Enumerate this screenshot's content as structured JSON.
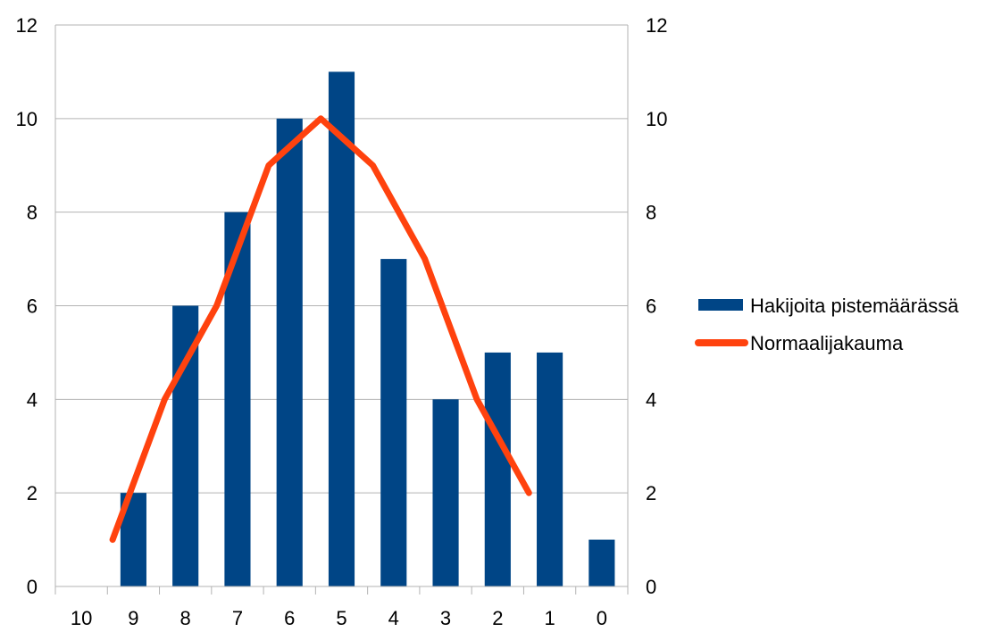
{
  "chart_data": {
    "type": "bar",
    "categories": [
      "10",
      "9",
      "8",
      "7",
      "6",
      "5",
      "4",
      "3",
      "2",
      "1",
      "0"
    ],
    "series": [
      {
        "name": "Hakijoita pistemäärässä",
        "type": "bar",
        "color": "#004586",
        "values": [
          0,
          2,
          6,
          8,
          10,
          11,
          7,
          4,
          5,
          5,
          1
        ]
      },
      {
        "name": "Normaalijakauma",
        "type": "line",
        "color": "#ff420e",
        "values": [
          null,
          1,
          4,
          6,
          9,
          10,
          9,
          7,
          4,
          2,
          null
        ]
      }
    ],
    "y_ticks": [
      "0",
      "2",
      "4",
      "6",
      "8",
      "10",
      "12"
    ],
    "ylim": [
      0,
      12
    ],
    "y2lim": [
      0,
      12
    ],
    "grid": true,
    "legend_position": "right"
  }
}
